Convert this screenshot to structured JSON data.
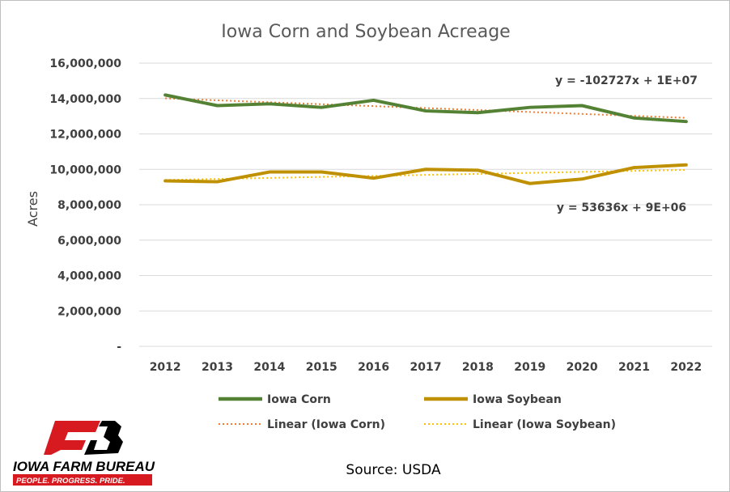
{
  "chart_data": {
    "type": "line",
    "title": "Iowa Corn and Soybean Acreage",
    "xlabel": "",
    "ylabel": "Acres",
    "categories": [
      "2012",
      "2013",
      "2014",
      "2015",
      "2016",
      "2017",
      "2018",
      "2019",
      "2020",
      "2021",
      "2022"
    ],
    "ylim": [
      0,
      16000000
    ],
    "yticks": [
      {
        "value": 0,
        "label": "-"
      },
      {
        "value": 2000000,
        "label": "2,000,000"
      },
      {
        "value": 4000000,
        "label": "4,000,000"
      },
      {
        "value": 6000000,
        "label": "6,000,000"
      },
      {
        "value": 8000000,
        "label": "8,000,000"
      },
      {
        "value": 10000000,
        "label": "10,000,000"
      },
      {
        "value": 12000000,
        "label": "12,000,000"
      },
      {
        "value": 14000000,
        "label": "14,000,000"
      },
      {
        "value": 16000000,
        "label": "16,000,000"
      }
    ],
    "grid": true,
    "legend_position": "bottom",
    "series": [
      {
        "name": "Iowa Corn",
        "color": "#548235",
        "values": [
          14200000,
          13600000,
          13700000,
          13500000,
          13900000,
          13300000,
          13200000,
          13500000,
          13600000,
          12900000,
          12700000
        ]
      },
      {
        "name": "Iowa Soybean",
        "color": "#bf9000",
        "values": [
          9350000,
          9300000,
          9850000,
          9850000,
          9500000,
          10000000,
          9950000,
          9200000,
          9450000,
          10100000,
          10250000
        ]
      }
    ],
    "trendlines": [
      {
        "name": "Linear (Iowa Corn)",
        "color": "#ed7d31",
        "equation": "y = -102727x + 1E+07",
        "start": 14010000,
        "end": 12910000
      },
      {
        "name": "Linear (Iowa Soybean)",
        "color": "#ffc000",
        "equation": "y = 53636x + 9E+06",
        "start": 9400000,
        "end": 9970000
      }
    ]
  },
  "source": "Source: USDA",
  "logo": {
    "name": "IOWA FARM BUREAU",
    "tagline": "PEOPLE. PROGRESS. PRIDE.",
    "mark": "FB",
    "colors": {
      "red": "#d71920",
      "black": "#000000"
    }
  }
}
